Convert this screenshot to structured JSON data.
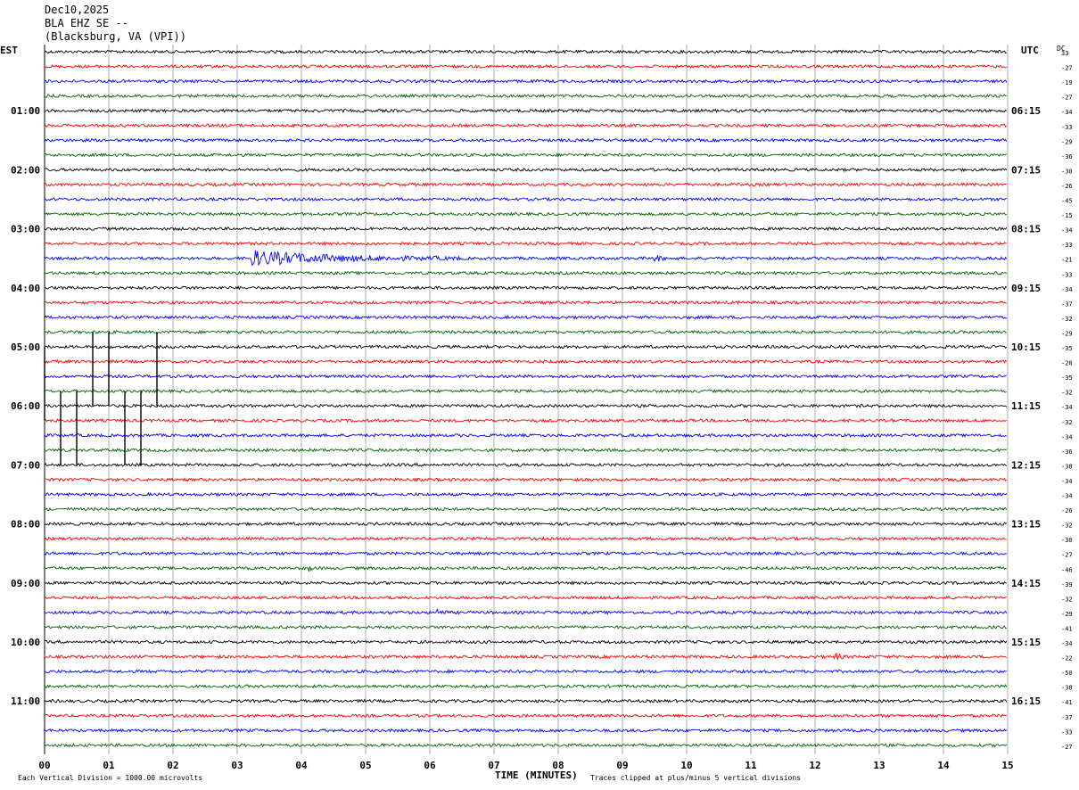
{
  "header": {
    "date": "Dec10,2025",
    "station": "BLA EHZ SE --",
    "location": "(Blacksburg, VA (VPI))"
  },
  "labels": {
    "left_tz": "EST",
    "right_tz": "UTC",
    "dc_header": "DC",
    "xlabel": "TIME (MINUTES)",
    "scale_note": "Each Vertical Division = 1000.00 microvolts",
    "clip_note": "Traces clipped at plus/minus 5 vertical divisions"
  },
  "chart_data": {
    "type": "line",
    "title": "",
    "x_ticks": [
      "00",
      "01",
      "02",
      "03",
      "04",
      "05",
      "06",
      "07",
      "08",
      "09",
      "10",
      "11",
      "12",
      "13",
      "14",
      "15"
    ],
    "xlim": [
      0,
      15
    ],
    "trace_colors": [
      "#000000",
      "#ff0000",
      "#0000ff",
      "#006400"
    ],
    "left_hour_labels": [
      "01:00",
      "02:00",
      "03:00",
      "04:00",
      "05:00",
      "06:00",
      "07:00",
      "08:00",
      "09:00",
      "10:00",
      "11:00"
    ],
    "right_hour_labels": [
      "06:15",
      "07:15",
      "08:15",
      "09:15",
      "10:15",
      "11:15",
      "12:15",
      "13:15",
      "14:15",
      "15:15",
      "16:15"
    ],
    "dc_offsets": [
      "33",
      "-27",
      "-19",
      "-27",
      "-34",
      "-33",
      "-29",
      "-36",
      "-30",
      "-26",
      "-45",
      "-15",
      "-34",
      "-33",
      "-21",
      "-33",
      "-34",
      "-37",
      "-32",
      "-29",
      "-35",
      "-28",
      "-35",
      "-32",
      "-34",
      "-32",
      "-34",
      "-36",
      "-38",
      "-34",
      "-34",
      "-26",
      "-32",
      "-30",
      "-27",
      "-46",
      "-39",
      "-32",
      "-29",
      "-41",
      "-34",
      "-22",
      "-50",
      "-38",
      "-41",
      "-37",
      "-33",
      "-27"
    ],
    "traces_count": 48,
    "events": [
      {
        "row": 14,
        "start_min": 3.2,
        "end_min": 6.5,
        "amp": 8,
        "note": "local event"
      },
      {
        "row": 14,
        "start_min": 9.5,
        "end_min": 9.8,
        "amp": 3
      },
      {
        "row": 35,
        "start_min": 4.1,
        "end_min": 4.2,
        "amp": 4
      },
      {
        "row": 38,
        "start_min": 6.1,
        "end_min": 6.3,
        "amp": 4
      },
      {
        "row": 41,
        "start_min": 12.3,
        "end_min": 12.5,
        "amp": 4
      }
    ],
    "spikes": [
      {
        "x_min": 0.0,
        "top_row": 20,
        "bottom_row": 25
      },
      {
        "x_min": 0.25,
        "top_row": 23,
        "bottom_row": 28
      },
      {
        "x_min": 0.5,
        "top_row": 23,
        "bottom_row": 28
      },
      {
        "x_min": 0.75,
        "top_row": 19,
        "bottom_row": 24
      },
      {
        "x_min": 1.0,
        "top_row": 19,
        "bottom_row": 24
      },
      {
        "x_min": 1.25,
        "top_row": 23,
        "bottom_row": 28
      },
      {
        "x_min": 1.5,
        "top_row": 23,
        "bottom_row": 28
      },
      {
        "x_min": 1.75,
        "top_row": 19,
        "bottom_row": 24
      }
    ]
  }
}
